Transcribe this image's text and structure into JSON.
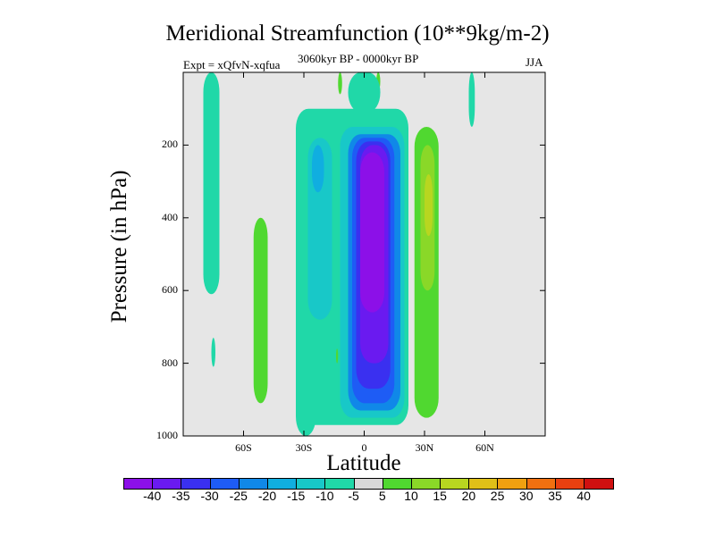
{
  "chart_data": {
    "type": "heatmap",
    "title": "Meridional Streamfunction (10**9kg/m-2)",
    "subtitle_left": "Expt = xQfvN-xqfua",
    "subtitle_center": "3060kyr BP - 0000kyr BP",
    "subtitle_right": "JJA",
    "xlabel": "Latitude",
    "ylabel": "Pressure (in hPa)",
    "xlim": [
      -90,
      90
    ],
    "ylim": [
      1000,
      0
    ],
    "x_ticks": [
      "60S",
      "30S",
      "0",
      "30N",
      "60N"
    ],
    "x_tick_values": [
      -60,
      -30,
      0,
      30,
      60
    ],
    "y_ticks": [
      "200",
      "400",
      "600",
      "800",
      "1000"
    ],
    "y_tick_values": [
      200,
      400,
      600,
      800,
      1000
    ],
    "colorbar_labels": [
      "-40",
      "-35",
      "-30",
      "-25",
      "-20",
      "-15",
      "-10",
      "-5",
      "5",
      "10",
      "15",
      "20",
      "25",
      "30",
      "35",
      "40"
    ],
    "colorbar_colors": [
      "#8c10e8",
      "#6a1af0",
      "#3a30f0",
      "#1e5cf5",
      "#1088e8",
      "#10aee0",
      "#18c8c8",
      "#20d8a8",
      "#d8d8d8",
      "#50d830",
      "#8ad828",
      "#b8d620",
      "#e0c018",
      "#f0a010",
      "#f07010",
      "#e84010",
      "#d01010"
    ],
    "colormap": {
      "-40": "#8c10e8",
      "-35": "#6a1af0",
      "-30": "#3a30f0",
      "-25": "#1e5cf5",
      "-20": "#1088e8",
      "-15": "#10aee0",
      "-10": "#18c8c8",
      "-5": "#20d8a8",
      "0": "#e6e6e6",
      "5": "#50d830",
      "10": "#8ad828",
      "15": "#b8d620"
    },
    "regions": [
      {
        "level": -5,
        "lat": [
          -80,
          -72
        ],
        "p": [
          0,
          610
        ],
        "note": "thin SH polar band"
      },
      {
        "level": -5,
        "lat": [
          -76,
          -74
        ],
        "p": [
          730,
          810
        ]
      },
      {
        "level": -5,
        "lat": [
          -34,
          22
        ],
        "p": [
          100,
          970
        ],
        "note": "broad negative envelope"
      },
      {
        "level": -5,
        "lat": [
          -34,
          -24
        ],
        "p": [
          600,
          1000
        ]
      },
      {
        "level": -10,
        "lat": [
          -28,
          -16
        ],
        "p": [
          180,
          680
        ]
      },
      {
        "level": -10,
        "lat": [
          -12,
          20
        ],
        "p": [
          150,
          950
        ]
      },
      {
        "level": -15,
        "lat": [
          -26,
          -20
        ],
        "p": [
          200,
          330
        ]
      },
      {
        "level": -20,
        "lat": [
          -8,
          18
        ],
        "p": [
          170,
          930
        ]
      },
      {
        "level": -25,
        "lat": [
          -6,
          15
        ],
        "p": [
          180,
          910
        ]
      },
      {
        "level": -30,
        "lat": [
          -4,
          13
        ],
        "p": [
          190,
          870
        ]
      },
      {
        "level": -35,
        "lat": [
          -2,
          12
        ],
        "p": [
          200,
          800
        ]
      },
      {
        "level": -40,
        "lat": [
          -2,
          10
        ],
        "p": [
          220,
          660
        ]
      },
      {
        "level": 5,
        "lat": [
          -55,
          -48
        ],
        "p": [
          400,
          910
        ]
      },
      {
        "level": 5,
        "lat": [
          25,
          37
        ],
        "p": [
          150,
          950
        ]
      },
      {
        "level": 10,
        "lat": [
          28,
          35
        ],
        "p": [
          200,
          600
        ]
      },
      {
        "level": 15,
        "lat": [
          30,
          34
        ],
        "p": [
          280,
          450
        ]
      },
      {
        "level": 5,
        "lat": [
          -14,
          -13
        ],
        "p": [
          760,
          800
        ]
      },
      {
        "level": 5,
        "lat": [
          -13,
          -11
        ],
        "p": [
          0,
          60
        ]
      },
      {
        "level": 5,
        "lat": [
          6,
          8
        ],
        "p": [
          0,
          50
        ]
      },
      {
        "level": -5,
        "lat": [
          52,
          55
        ],
        "p": [
          0,
          150
        ]
      },
      {
        "level": -5,
        "lat": [
          -8,
          8
        ],
        "p": [
          0,
          110
        ]
      }
    ]
  }
}
